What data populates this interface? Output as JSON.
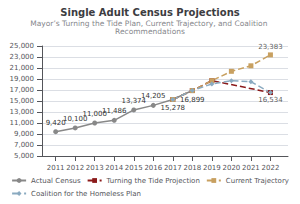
{
  "chart_data": {
    "type": "line",
    "title": "Single Adult Census Projections",
    "subtitle": "Mayor’s Turning the Tide Plan, Current Trajectory, and Coalition Recommendations",
    "series": [
      {
        "name": "Actual Census",
        "color": "#888888",
        "marker": "circle",
        "line_style": "solid",
        "x": [
          2011,
          2012,
          2013,
          2014,
          2015,
          2016,
          2017,
          2018
        ],
        "values": [
          9420,
          10100,
          11000,
          11486,
          13374,
          14205,
          15278,
          16899
        ],
        "data_labels": true,
        "value_labels": [
          "9,420",
          "10,100",
          "11,000",
          "11,486",
          "13,374",
          "14,205",
          "15,278",
          "16,899"
        ]
      },
      {
        "name": "Turning the Tide Projection",
        "color": "#8b1a1a",
        "marker": "square",
        "line_style": "dashed",
        "x": [
          2017,
          2018,
          2019,
          2022
        ],
        "values": [
          15278,
          16899,
          18700,
          16534
        ]
      },
      {
        "name": "Current Trajectory",
        "color": "#c8a060",
        "marker": "square",
        "line_style": "dashed",
        "x": [
          2017,
          2018,
          2019,
          2020,
          2021,
          2022
        ],
        "values": [
          15278,
          16899,
          18700,
          20400,
          21400,
          23383
        ]
      },
      {
        "name": "Coalition for the Homeless Plan",
        "color": "#8aaac0",
        "marker": "diamond",
        "line_style": "dashed",
        "x": [
          2017,
          2018,
          2019,
          2020,
          2021,
          2022
        ],
        "values": [
          15278,
          16899,
          18100,
          18700,
          18500,
          16534
        ]
      }
    ],
    "annotations": [
      {
        "x": 2022,
        "y": 23383,
        "text": "23,383"
      },
      {
        "x": 2022,
        "y": 16534,
        "text": "16,534"
      }
    ],
    "xlim": [
      2010.3,
      2022.9
    ],
    "xticks": [
      2011,
      2012,
      2013,
      2014,
      2015,
      2016,
      2017,
      2018,
      2019,
      2020,
      2021,
      2022
    ],
    "ylim": [
      5000,
      25000
    ],
    "yticks": [
      {
        "value": 5000,
        "label": "5,000"
      },
      {
        "value": 7000,
        "label": "7,000"
      },
      {
        "value": 9000,
        "label": "9,000"
      },
      {
        "value": 11000,
        "label": "11,000"
      },
      {
        "value": 13000,
        "label": "13,000"
      },
      {
        "value": 15000,
        "label": "15,000"
      },
      {
        "value": 17000,
        "label": "17,000"
      },
      {
        "value": 19000,
        "label": "19,000"
      },
      {
        "value": 21000,
        "label": "21,000"
      },
      {
        "value": 23000,
        "label": "23,000"
      },
      {
        "value": 25000,
        "label": "25,000"
      }
    ],
    "grid": true,
    "legend": "bottom"
  }
}
